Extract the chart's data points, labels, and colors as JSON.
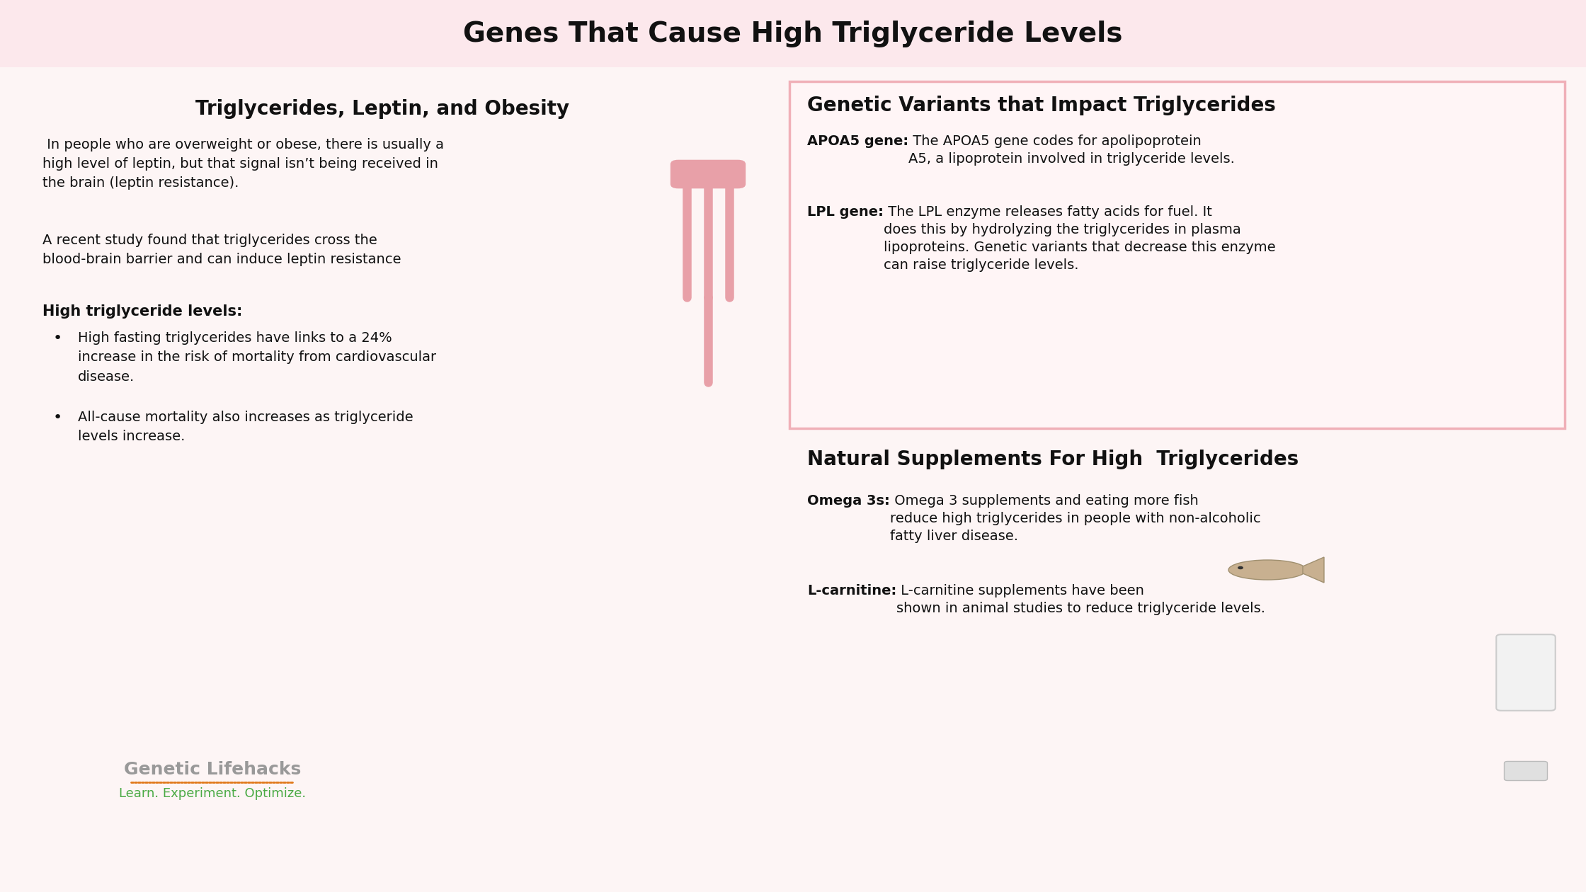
{
  "title": "Genes That Cause High Triglyceride Levels",
  "title_bg_color": "#fce8ec",
  "main_bg_color": "#fdf5f5",
  "right_panel_border": "#f0b0b8",
  "left_title": "Triglycerides, Leptin, and Obesity",
  "left_para1": " In people who are overweight or obese, there is usually a\nhigh level of leptin, but that signal isn’t being received in\nthe brain (leptin resistance).",
  "left_para2": "A recent study found that triglycerides cross the\nblood-brain barrier and can induce leptin resistance",
  "left_section2_title": "High triglyceride levels:",
  "bullet1": "High fasting triglycerides have links to a 24%\nincrease in the risk of mortality from cardiovascular\ndisease.",
  "bullet2": "All-cause mortality also increases as triglyceride\nlevels increase.",
  "brand_name": "Genetic Lifehacks",
  "brand_tagline": "Learn. Experiment. Optimize.",
  "right_top_title": "Genetic Variants that Impact Triglycerides",
  "apoa5_bold": "APOA5 gene:",
  "apoa5_text": " The APOA5 gene codes for apolipoprotein\nA5, a lipoprotein involved in triglyceride levels.",
  "lpl_bold": "LPL gene:",
  "lpl_text": " The LPL enzyme releases fatty acids for fuel. It\ndoes this by hydrolyzing the triglycerides in plasma\nlipoproteins. Genetic variants that decrease this enzyme\ncan raise triglyceride levels.",
  "right_bottom_title": "Natural Supplements For High  Triglycerides",
  "omega_bold": "Omega 3s:",
  "omega_text": " Omega 3 supplements and eating more fish\nreduce high triglycerides in people with non-alcoholic\nfatty liver disease.",
  "lcarnitine_bold": "L-carnitine:",
  "lcarnitine_text": " L-carnitine supplements have been\nshown in animal studies to reduce triglyceride levels.",
  "text_color": "#111111",
  "brand_color": "#999999",
  "tagline_color": "#4aaa44",
  "dotline_color": "#e07818",
  "title_fontsize": 28,
  "section_title_fontsize": 18,
  "body_fontsize": 14,
  "brand_fontsize": 18,
  "tagline_fontsize": 13
}
